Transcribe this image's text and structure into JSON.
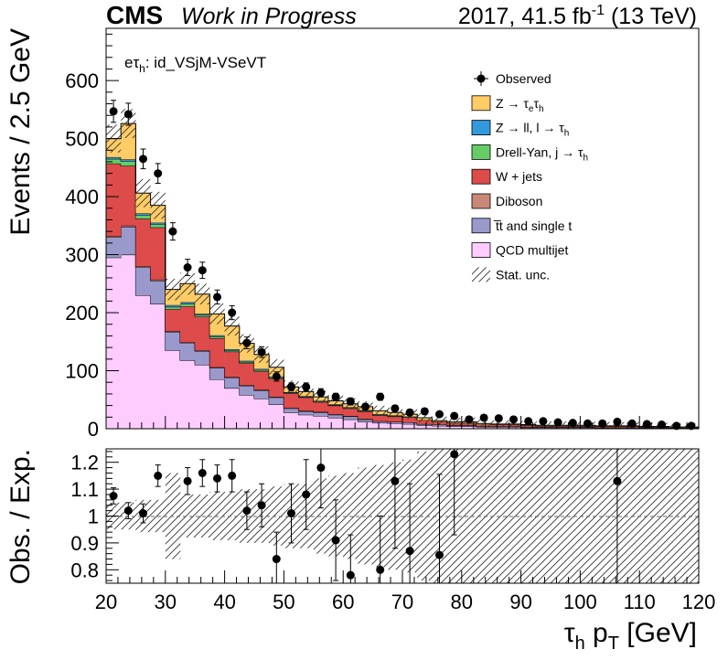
{
  "header": {
    "cms": "CMS",
    "work": "Work in Progress",
    "lumi_prefix": "2017, 41.5 fb",
    "lumi_exp": "-1",
    "lumi_suffix": " (13 TeV)"
  },
  "category": {
    "prefix": "eτ",
    "sub": "h",
    "suffix": ": id_VSjM-VSeVT"
  },
  "axes": {
    "ylabel_top": "Events / 2.5 GeV",
    "ylabel_bottom": "Obs. / Exp.",
    "xlabel_main": "τ",
    "xlabel_sub": "h",
    "xlabel_p": " p",
    "xlabel_psub": "T",
    "xlabel_unit": " [GeV]"
  },
  "legend": [
    {
      "key": "observed",
      "pre": "Observed",
      "sub": "",
      "post": ""
    },
    {
      "key": "ztt",
      "pre": "Z → τ",
      "sub": "e",
      "post": "τ",
      "sub2": "h",
      "color": "#ffcc66"
    },
    {
      "key": "zll",
      "pre": "Z → ll, l → τ",
      "sub": "h",
      "post": "",
      "color": "#3399dd"
    },
    {
      "key": "dy",
      "pre": "Drell-Yan, j → τ",
      "sub": "h",
      "post": "",
      "color": "#66cc66"
    },
    {
      "key": "wjets",
      "pre": "W + jets",
      "sub": "",
      "post": "",
      "color": "#dd4b4b"
    },
    {
      "key": "diboson",
      "pre": "Diboson",
      "sub": "",
      "post": "",
      "color": "#c88877"
    },
    {
      "key": "ttbar",
      "pre": "t̅t and single t",
      "sub": "",
      "post": "",
      "color": "#9999cc"
    },
    {
      "key": "qcd",
      "pre": "QCD multijet",
      "sub": "",
      "post": "",
      "color": "#ffccff"
    },
    {
      "key": "stat",
      "pre": "Stat. unc.",
      "sub": "",
      "post": ""
    }
  ],
  "chart_data": [
    {
      "type": "bar",
      "subtype": "stacked-histogram",
      "bin_width": 2.5,
      "xlim": [
        20,
        120
      ],
      "ylim": [
        0,
        690
      ],
      "yticks": [
        0,
        100,
        200,
        300,
        400,
        500,
        600
      ],
      "xticks": [
        20,
        30,
        40,
        50,
        60,
        70,
        80,
        90,
        100,
        110,
        120
      ],
      "bin_edges": [
        20,
        22.5,
        25,
        27.5,
        30,
        32.5,
        35,
        37.5,
        40,
        42.5,
        45,
        47.5,
        50,
        52.5,
        55,
        57.5,
        60,
        62.5,
        65,
        67.5,
        70,
        72.5,
        75,
        77.5,
        80,
        82.5,
        85,
        87.5,
        90,
        92.5,
        95,
        97.5,
        100,
        102.5,
        105,
        107.5,
        110,
        112.5,
        115,
        117.5,
        120
      ],
      "series": [
        {
          "name": "QCD multijet",
          "key": "qcd",
          "values": [
            295,
            300,
            230,
            215,
            135,
            118,
            110,
            85,
            70,
            58,
            52,
            42,
            28,
            24,
            22,
            19,
            16,
            12,
            10,
            9,
            8,
            6,
            5,
            4,
            4,
            3,
            3,
            3,
            2,
            2,
            2,
            2,
            2,
            1,
            1,
            1,
            1,
            1,
            1,
            1
          ]
        },
        {
          "name": "t̅t and single t",
          "key": "ttbar",
          "values": [
            35,
            48,
            48,
            40,
            32,
            30,
            24,
            20,
            18,
            16,
            14,
            12,
            7,
            6,
            6,
            5,
            5,
            4,
            3,
            3,
            3,
            2,
            2,
            2,
            2,
            1,
            1,
            1,
            1,
            1,
            1,
            1,
            1,
            1,
            1,
            1,
            1,
            1,
            0,
            0
          ]
        },
        {
          "name": "Diboson",
          "key": "diboson",
          "values": [
            2,
            2,
            2,
            2,
            1,
            1,
            1,
            1,
            1,
            1,
            1,
            1,
            1,
            1,
            1,
            1,
            1,
            1,
            0,
            0,
            0,
            0,
            0,
            0,
            0,
            0,
            0,
            0,
            0,
            0,
            0,
            0,
            0,
            0,
            0,
            0,
            0,
            0,
            0,
            0
          ]
        },
        {
          "name": "W + jets",
          "key": "wjets",
          "values": [
            125,
            103,
            82,
            90,
            38,
            62,
            58,
            50,
            44,
            38,
            32,
            31,
            25,
            23,
            17,
            15,
            13,
            13,
            10,
            9,
            9,
            7,
            5,
            4,
            4,
            3,
            3,
            3,
            3,
            2,
            2,
            2,
            2,
            2,
            2,
            2,
            1,
            1,
            1,
            1
          ]
        },
        {
          "name": "Drell-Yan, j → τh",
          "key": "dy",
          "values": [
            8,
            8,
            6,
            5,
            4,
            4,
            3,
            3,
            2,
            2,
            2,
            2,
            1,
            1,
            1,
            1,
            1,
            1,
            1,
            1,
            0,
            0,
            0,
            0,
            0,
            0,
            0,
            0,
            0,
            0,
            0,
            0,
            0,
            0,
            0,
            0,
            0,
            0,
            0,
            0
          ]
        },
        {
          "name": "Z → ll, l → τh",
          "key": "zll",
          "values": [
            3,
            3,
            3,
            3,
            3,
            3,
            2,
            2,
            2,
            2,
            2,
            2,
            1,
            1,
            1,
            1,
            1,
            1,
            1,
            1,
            1,
            0,
            0,
            0,
            0,
            0,
            0,
            0,
            0,
            0,
            0,
            0,
            0,
            0,
            0,
            0,
            0,
            0,
            0,
            0
          ]
        },
        {
          "name": "Z → τeτh",
          "key": "ztt",
          "values": [
            32,
            62,
            35,
            30,
            27,
            32,
            34,
            37,
            40,
            30,
            25,
            16,
            9,
            8,
            7,
            6,
            6,
            6,
            6,
            5,
            4,
            4,
            2,
            2,
            2,
            2,
            1,
            1,
            1,
            1,
            1,
            1,
            1,
            1,
            1,
            1,
            1,
            1,
            1,
            1
          ]
        }
      ],
      "observed": {
        "name": "Observed",
        "x": [
          21.25,
          23.75,
          26.25,
          28.75,
          31.25,
          33.75,
          36.25,
          38.75,
          41.25,
          43.75,
          46.25,
          48.75,
          51.25,
          53.75,
          56.25,
          58.75,
          61.25,
          63.75,
          66.25,
          68.75,
          71.25,
          73.75,
          76.25,
          78.75,
          81.25,
          83.75,
          86.25,
          88.75,
          91.25,
          93.75,
          96.25,
          98.75,
          101.25,
          103.75,
          106.25,
          108.75,
          111.25,
          113.75,
          116.25,
          118.75
        ],
        "y": [
          547,
          542,
          465,
          440,
          340,
          278,
          273,
          227,
          200,
          148,
          132,
          90,
          72,
          72,
          62,
          55,
          47,
          38,
          55,
          35,
          28,
          30,
          25,
          22,
          16,
          19,
          18,
          16,
          13,
          13,
          11,
          10,
          9,
          9,
          12,
          9,
          8,
          7,
          5,
          5
        ],
        "err": [
          19,
          19,
          17,
          17,
          15,
          14,
          14,
          12,
          12,
          10,
          9,
          8,
          7,
          7,
          7,
          6,
          6,
          5,
          6,
          5,
          5,
          5,
          4,
          4,
          4,
          4,
          4,
          3,
          3,
          3,
          3,
          3,
          3,
          3,
          3,
          3,
          3,
          2,
          2,
          2
        ]
      },
      "stat_unc_frac": [
        0.04,
        0.04,
        0.05,
        0.05,
        0.06,
        0.06,
        0.06,
        0.07,
        0.07,
        0.08,
        0.08,
        0.09,
        0.1,
        0.1,
        0.11,
        0.12,
        0.13,
        0.14,
        0.15,
        0.16,
        0.17,
        0.2,
        0.22,
        0.25,
        0.27,
        0.3,
        0.3,
        0.35,
        0.35,
        0.4,
        0.4,
        0.45,
        0.45,
        0.5,
        0.5,
        0.5,
        0.5,
        0.5,
        0.5,
        0.5
      ]
    },
    {
      "type": "scatter",
      "subtype": "ratio",
      "ylabel": "Obs. / Exp.",
      "xlim": [
        20,
        120
      ],
      "ylim": [
        0.75,
        1.25
      ],
      "yticks": [
        0.8,
        0.9,
        1,
        1.1,
        1.2
      ],
      "ytick_labels": [
        "0.8",
        "0.9",
        "1",
        "1.1",
        "1.2"
      ],
      "unc_band": {
        "x_edges": [
          20,
          22.5,
          25,
          27.5,
          30,
          32.5,
          35,
          37.5,
          40,
          42.5,
          45,
          47.5,
          50,
          52.5,
          55,
          57.5,
          60,
          62.5,
          65,
          67.5,
          70,
          72.5,
          75,
          77.5,
          80,
          82.5,
          85,
          87.5,
          90,
          92.5,
          95,
          97.5,
          100,
          102.5,
          105,
          107.5,
          110,
          112.5,
          115,
          117.5,
          120
        ],
        "half_width": [
          0.05,
          0.05,
          0.06,
          0.06,
          0.16,
          0.08,
          0.08,
          0.09,
          0.09,
          0.1,
          0.1,
          0.11,
          0.12,
          0.12,
          0.14,
          0.15,
          0.16,
          0.18,
          0.19,
          0.2,
          0.21,
          0.24,
          0.26,
          0.28,
          0.3,
          0.3,
          0.3,
          0.3,
          0.3,
          0.3,
          0.3,
          0.3,
          0.3,
          0.3,
          0.3,
          0.3,
          0.3,
          0.3,
          0.3,
          0.3
        ]
      },
      "points": {
        "x": [
          21.25,
          23.75,
          26.25,
          28.75,
          33.75,
          36.25,
          38.75,
          41.25,
          43.75,
          46.25,
          48.75,
          51.25,
          53.75,
          56.25,
          58.75,
          61.25,
          66.25,
          68.75,
          71.25,
          76.25,
          78.75,
          106.25
        ],
        "y": [
          1.075,
          1.02,
          1.01,
          1.15,
          1.13,
          1.16,
          1.14,
          1.15,
          1.02,
          1.04,
          0.84,
          1.01,
          1.08,
          1.18,
          0.91,
          0.78,
          0.8,
          1.13,
          0.87,
          0.855,
          1.23,
          1.13
        ],
        "err": [
          0.03,
          0.03,
          0.035,
          0.04,
          0.05,
          0.05,
          0.05,
          0.06,
          0.07,
          0.08,
          0.1,
          0.11,
          0.13,
          0.15,
          0.15,
          0.15,
          0.2,
          0.25,
          0.25,
          0.3,
          0.3,
          0.5
        ]
      }
    }
  ]
}
